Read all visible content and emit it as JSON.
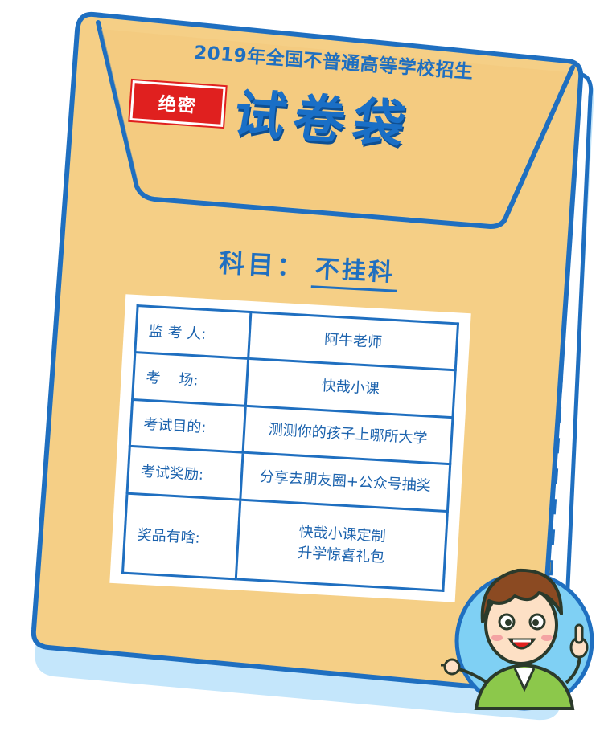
{
  "header": {
    "exam_title": "2019年全国不普通高等学校招生",
    "secret_label": "绝密",
    "bag_title": "试卷袋"
  },
  "subject": {
    "label": "科目：",
    "value": "不挂科"
  },
  "info_rows": [
    {
      "key": "监 考 人:",
      "value": "阿牛老师"
    },
    {
      "key": "考    场:",
      "value": "快哉小课"
    },
    {
      "key": "考试目的:",
      "value": "测测你的孩子上哪所大学"
    },
    {
      "key": "考试奖励:",
      "value": "分享去朋友圈+公众号抽奖"
    },
    {
      "key": "奖品有啥:",
      "value_lines": [
        "快哉小课定制",
        "升学惊喜礼包"
      ]
    }
  ],
  "colors": {
    "envelope": "#f5cf86",
    "outline": "#1f6fc0",
    "stamp": "#e0201f",
    "shadow": "#c4e6fb",
    "stripe": "#f6a623"
  },
  "icons": {
    "mascot": "cartoon-boy-icon"
  }
}
